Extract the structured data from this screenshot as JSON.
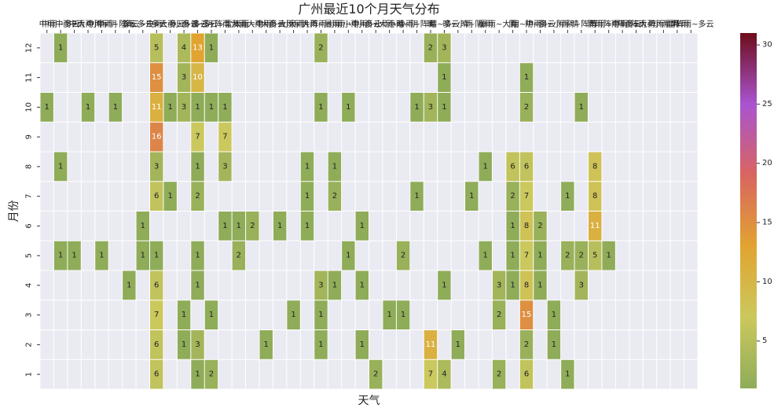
{
  "chart_data": {
    "type": "heatmap",
    "title": "广州最近10个月天气分布",
    "xlabel": "天气",
    "ylabel": "月份",
    "x_categories": [
      "中雨",
      "中雨~多云",
      "中雨~大雨",
      "中雨~小雨",
      "中雨~阴",
      "中雨~阵雨",
      "多云",
      "多云~中雨",
      "多云~大雨",
      "多云~小雨",
      "多云~晴",
      "多云~阴",
      "多云~阵雨",
      "多云~雷阵雨",
      "大雨",
      "大雨~中雨",
      "大雨~多云",
      "大雨~小雨",
      "大雨~阴",
      "大雨~阵雨",
      "大雨~暴雨",
      "小雨",
      "小雨~中雨",
      "小雨~多云",
      "小雨~大雨",
      "小雨~晴",
      "小雨~阴",
      "小雨~阵雨",
      "晴",
      "晴~多云",
      "晴~小雨",
      "晴~阴",
      "暴雨",
      "暴雨~大雨",
      "阴",
      "阴~中雨",
      "阴~多云",
      "阴~小雨",
      "阴~晴",
      "阴~阵雨",
      "阵雨",
      "阵雨~中雨",
      "阵雨~多云",
      "阵雨~大雨",
      "阵雨~小雨",
      "阵雨~阴",
      "雷阵雨",
      "雷阵雨~多云"
    ],
    "y_categories": [
      "12",
      "11",
      "10",
      "9",
      "8",
      "7",
      "6",
      "5",
      "4",
      "3",
      "2",
      "1"
    ],
    "cells": [
      {
        "y": "12",
        "col": 1,
        "v": 1
      },
      {
        "y": "12",
        "col": 8,
        "v": 5
      },
      {
        "y": "12",
        "col": 10,
        "v": 4
      },
      {
        "y": "12",
        "col": 11,
        "v": 13
      },
      {
        "y": "12",
        "col": 12,
        "v": 1
      },
      {
        "y": "12",
        "col": 20,
        "v": 2
      },
      {
        "y": "12",
        "col": 28,
        "v": 2
      },
      {
        "y": "12",
        "col": 29,
        "v": 3
      },
      {
        "y": "11",
        "col": 8,
        "v": 15
      },
      {
        "y": "11",
        "col": 10,
        "v": 3
      },
      {
        "y": "11",
        "col": 11,
        "v": 10
      },
      {
        "y": "11",
        "col": 29,
        "v": 1
      },
      {
        "y": "11",
        "col": 35,
        "v": 1
      },
      {
        "y": "10",
        "col": 0,
        "v": 1
      },
      {
        "y": "10",
        "col": 3,
        "v": 1
      },
      {
        "y": "10",
        "col": 5,
        "v": 1
      },
      {
        "y": "10",
        "col": 8,
        "v": 11
      },
      {
        "y": "10",
        "col": 9,
        "v": 1
      },
      {
        "y": "10",
        "col": 10,
        "v": 3
      },
      {
        "y": "10",
        "col": 11,
        "v": 1
      },
      {
        "y": "10",
        "col": 12,
        "v": 1
      },
      {
        "y": "10",
        "col": 13,
        "v": 1
      },
      {
        "y": "10",
        "col": 20,
        "v": 1
      },
      {
        "y": "10",
        "col": 22,
        "v": 1
      },
      {
        "y": "10",
        "col": 27,
        "v": 1
      },
      {
        "y": "10",
        "col": 28,
        "v": 3
      },
      {
        "y": "10",
        "col": 29,
        "v": 1
      },
      {
        "y": "10",
        "col": 35,
        "v": 2
      },
      {
        "y": "10",
        "col": 39,
        "v": 1
      },
      {
        "y": "9",
        "col": 8,
        "v": 16
      },
      {
        "y": "9",
        "col": 11,
        "v": 7
      },
      {
        "y": "9",
        "col": 13,
        "v": 7
      },
      {
        "y": "8",
        "col": 1,
        "v": 1
      },
      {
        "y": "8",
        "col": 8,
        "v": 3
      },
      {
        "y": "8",
        "col": 11,
        "v": 1
      },
      {
        "y": "8",
        "col": 13,
        "v": 3
      },
      {
        "y": "8",
        "col": 19,
        "v": 1
      },
      {
        "y": "8",
        "col": 21,
        "v": 1
      },
      {
        "y": "8",
        "col": 32,
        "v": 1
      },
      {
        "y": "8",
        "col": 34,
        "v": 6
      },
      {
        "y": "8",
        "col": 35,
        "v": 6
      },
      {
        "y": "8",
        "col": 40,
        "v": 8
      },
      {
        "y": "7",
        "col": 8,
        "v": 6
      },
      {
        "y": "7",
        "col": 9,
        "v": 1
      },
      {
        "y": "7",
        "col": 11,
        "v": 2
      },
      {
        "y": "7",
        "col": 19,
        "v": 1
      },
      {
        "y": "7",
        "col": 21,
        "v": 2
      },
      {
        "y": "7",
        "col": 27,
        "v": 1
      },
      {
        "y": "7",
        "col": 31,
        "v": 1
      },
      {
        "y": "7",
        "col": 34,
        "v": 2
      },
      {
        "y": "7",
        "col": 35,
        "v": 7
      },
      {
        "y": "7",
        "col": 38,
        "v": 1
      },
      {
        "y": "7",
        "col": 40,
        "v": 8
      },
      {
        "y": "6",
        "col": 7,
        "v": 1
      },
      {
        "y": "6",
        "col": 13,
        "v": 1
      },
      {
        "y": "6",
        "col": 14,
        "v": 1
      },
      {
        "y": "6",
        "col": 15,
        "v": 2
      },
      {
        "y": "6",
        "col": 17,
        "v": 1
      },
      {
        "y": "6",
        "col": 19,
        "v": 1
      },
      {
        "y": "6",
        "col": 23,
        "v": 1
      },
      {
        "y": "6",
        "col": 34,
        "v": 1
      },
      {
        "y": "6",
        "col": 35,
        "v": 8
      },
      {
        "y": "6",
        "col": 36,
        "v": 2
      },
      {
        "y": "6",
        "col": 40,
        "v": 11
      },
      {
        "y": "5",
        "col": 1,
        "v": 1
      },
      {
        "y": "5",
        "col": 2,
        "v": 1
      },
      {
        "y": "5",
        "col": 4,
        "v": 1
      },
      {
        "y": "5",
        "col": 7,
        "v": 1
      },
      {
        "y": "5",
        "col": 8,
        "v": 1
      },
      {
        "y": "5",
        "col": 11,
        "v": 1
      },
      {
        "y": "5",
        "col": 14,
        "v": 2
      },
      {
        "y": "5",
        "col": 22,
        "v": 1
      },
      {
        "y": "5",
        "col": 26,
        "v": 2
      },
      {
        "y": "5",
        "col": 32,
        "v": 1
      },
      {
        "y": "5",
        "col": 34,
        "v": 1
      },
      {
        "y": "5",
        "col": 35,
        "v": 7
      },
      {
        "y": "5",
        "col": 36,
        "v": 1
      },
      {
        "y": "5",
        "col": 38,
        "v": 2
      },
      {
        "y": "5",
        "col": 39,
        "v": 2
      },
      {
        "y": "5",
        "col": 40,
        "v": 5
      },
      {
        "y": "5",
        "col": 41,
        "v": 1
      },
      {
        "y": "4",
        "col": 6,
        "v": 1
      },
      {
        "y": "4",
        "col": 8,
        "v": 6
      },
      {
        "y": "4",
        "col": 11,
        "v": 1
      },
      {
        "y": "4",
        "col": 20,
        "v": 3
      },
      {
        "y": "4",
        "col": 21,
        "v": 1
      },
      {
        "y": "4",
        "col": 23,
        "v": 1
      },
      {
        "y": "4",
        "col": 29,
        "v": 1
      },
      {
        "y": "4",
        "col": 33,
        "v": 3
      },
      {
        "y": "4",
        "col": 34,
        "v": 1
      },
      {
        "y": "4",
        "col": 35,
        "v": 8
      },
      {
        "y": "4",
        "col": 36,
        "v": 1
      },
      {
        "y": "4",
        "col": 39,
        "v": 3
      },
      {
        "y": "3",
        "col": 8,
        "v": 7
      },
      {
        "y": "3",
        "col": 10,
        "v": 1
      },
      {
        "y": "3",
        "col": 12,
        "v": 1
      },
      {
        "y": "3",
        "col": 18,
        "v": 1
      },
      {
        "y": "3",
        "col": 20,
        "v": 1
      },
      {
        "y": "3",
        "col": 25,
        "v": 1
      },
      {
        "y": "3",
        "col": 26,
        "v": 1
      },
      {
        "y": "3",
        "col": 33,
        "v": 2
      },
      {
        "y": "3",
        "col": 35,
        "v": 15
      },
      {
        "y": "3",
        "col": 37,
        "v": 1
      },
      {
        "y": "2",
        "col": 8,
        "v": 6
      },
      {
        "y": "2",
        "col": 10,
        "v": 1
      },
      {
        "y": "2",
        "col": 11,
        "v": 3
      },
      {
        "y": "2",
        "col": 16,
        "v": 1
      },
      {
        "y": "2",
        "col": 20,
        "v": 1
      },
      {
        "y": "2",
        "col": 23,
        "v": 1
      },
      {
        "y": "2",
        "col": 28,
        "v": 11
      },
      {
        "y": "2",
        "col": 30,
        "v": 1
      },
      {
        "y": "2",
        "col": 35,
        "v": 2
      },
      {
        "y": "2",
        "col": 37,
        "v": 1
      },
      {
        "y": "1",
        "col": 8,
        "v": 6
      },
      {
        "y": "1",
        "col": 11,
        "v": 1
      },
      {
        "y": "1",
        "col": 12,
        "v": 2
      },
      {
        "y": "1",
        "col": 24,
        "v": 2
      },
      {
        "y": "1",
        "col": 28,
        "v": 7
      },
      {
        "y": "1",
        "col": 29,
        "v": 4
      },
      {
        "y": "1",
        "col": 33,
        "v": 2
      },
      {
        "y": "1",
        "col": 35,
        "v": 6
      },
      {
        "y": "1",
        "col": 38,
        "v": 1
      }
    ],
    "colorbar": {
      "min": 1,
      "max": 31,
      "ticks": [
        5,
        10,
        15,
        20,
        25,
        30
      ],
      "colors": [
        "#8fac59",
        "#cbc85d",
        "#e1a431",
        "#d96560",
        "#a854d0",
        "#6d0d1a"
      ]
    },
    "cell_text_light_above": 9,
    "colors": {
      "background": "#eaeaf2",
      "gridline": "#ffffff"
    }
  }
}
